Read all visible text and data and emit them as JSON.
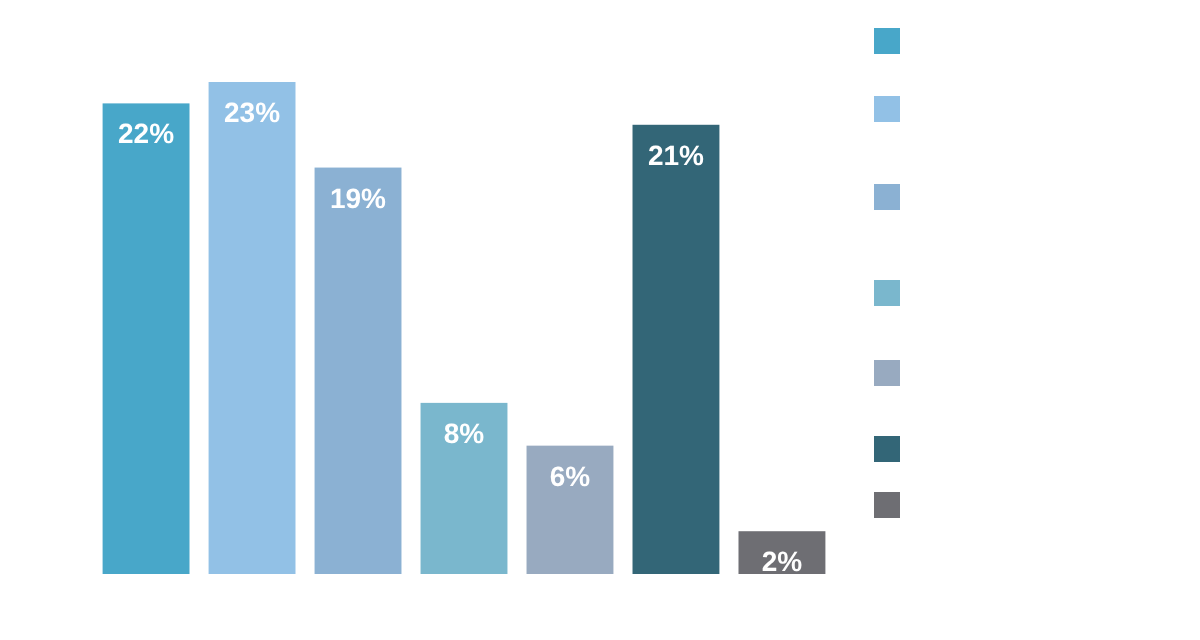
{
  "chart_data": {
    "type": "bar",
    "categories": [
      null,
      null,
      null,
      null,
      null,
      null,
      null
    ],
    "values": [
      22,
      23,
      19,
      8,
      6,
      21,
      2
    ],
    "value_labels": [
      "22%",
      "23%",
      "19%",
      "8%",
      "6%",
      "21%",
      "2%"
    ],
    "colors": [
      "#48a7c9",
      "#92c1e6",
      "#8bb1d3",
      "#7ab7cd",
      "#98aac0",
      "#336677",
      "#6e6e73"
    ]
  }
}
